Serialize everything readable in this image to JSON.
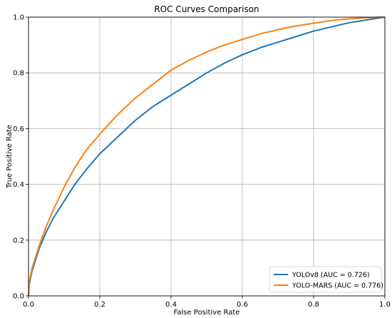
{
  "chart_data": {
    "type": "line",
    "title": "ROC Curves Comparison",
    "xlabel": "False Positive Rate",
    "ylabel": "True Positive Rate",
    "xlim": [
      0.0,
      1.0
    ],
    "ylim": [
      0.0,
      1.0
    ],
    "xticks": [
      "0.0",
      "0.2",
      "0.4",
      "0.6",
      "0.8",
      "1.0"
    ],
    "yticks": [
      "0.0",
      "0.2",
      "0.4",
      "0.6",
      "0.8",
      "1.0"
    ],
    "grid": true,
    "legend_position": "lower-right",
    "series": [
      {
        "name": "YOLOv8 (AUC = 0.726)",
        "color": "#1f77b4",
        "x": [
          0.0,
          0.002,
          0.005,
          0.01,
          0.02,
          0.03,
          0.05,
          0.07,
          0.1,
          0.13,
          0.16,
          0.2,
          0.25,
          0.3,
          0.35,
          0.4,
          0.45,
          0.5,
          0.55,
          0.6,
          0.65,
          0.7,
          0.75,
          0.8,
          0.85,
          0.9,
          0.95,
          1.0
        ],
        "y": [
          0.0,
          0.04,
          0.06,
          0.09,
          0.13,
          0.17,
          0.23,
          0.28,
          0.34,
          0.4,
          0.45,
          0.51,
          0.57,
          0.63,
          0.68,
          0.72,
          0.76,
          0.8,
          0.835,
          0.865,
          0.89,
          0.91,
          0.93,
          0.95,
          0.965,
          0.98,
          0.99,
          1.0
        ]
      },
      {
        "name": "YOLO-MARS (AUC = 0.776)",
        "color": "#ff7f0e",
        "x": [
          0.0,
          0.002,
          0.005,
          0.01,
          0.02,
          0.03,
          0.05,
          0.07,
          0.1,
          0.13,
          0.16,
          0.2,
          0.25,
          0.3,
          0.35,
          0.4,
          0.45,
          0.5,
          0.55,
          0.6,
          0.65,
          0.7,
          0.75,
          0.8,
          0.85,
          0.9,
          0.95,
          1.0
        ],
        "y": [
          0.0,
          0.05,
          0.07,
          0.1,
          0.14,
          0.18,
          0.25,
          0.31,
          0.39,
          0.46,
          0.52,
          0.58,
          0.65,
          0.71,
          0.76,
          0.81,
          0.845,
          0.875,
          0.9,
          0.92,
          0.94,
          0.955,
          0.968,
          0.978,
          0.988,
          0.994,
          0.998,
          1.0
        ]
      }
    ]
  }
}
